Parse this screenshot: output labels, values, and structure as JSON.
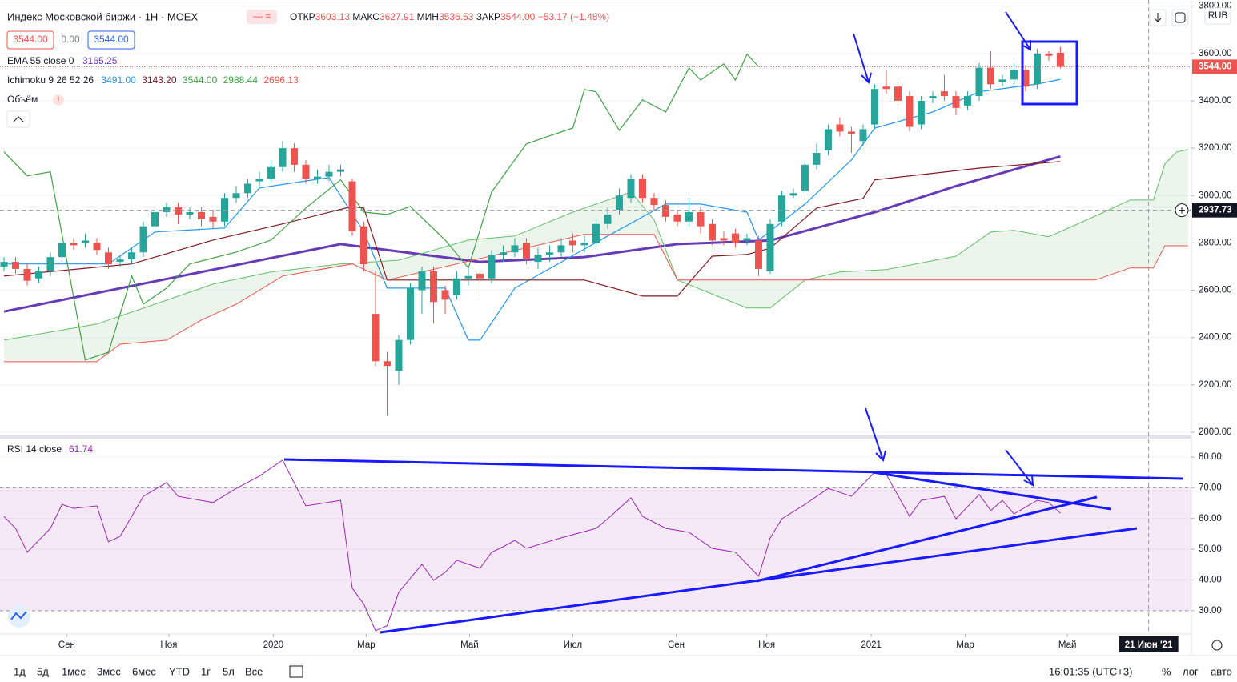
{
  "header": {
    "title": "Индекс Московской биржи · 1Н · MOEX",
    "ohlc": [
      [
        "ОТКР",
        "3603.13"
      ],
      [
        "МАКС",
        "3627.91"
      ],
      [
        "МИН",
        "3536.53"
      ],
      [
        "ЗАКР",
        "3544.00"
      ]
    ],
    "change": "−53.17 (−1.48%)",
    "sell": "3544.00",
    "spread": "0.00",
    "buy": "3544.00",
    "currency": "RUB"
  },
  "legend": {
    "ema": "EMA 55 close 0",
    "ema_value": "3165.25",
    "ichimoku": "Ichimoku 9 26 52 26",
    "ichimoku_values": [
      "3491.00",
      "3143.20",
      "3544.00",
      "2988.44",
      "2696.13"
    ],
    "volume": "Объём",
    "rsi": "RSI 14 close",
    "rsi_value": "61.74"
  },
  "toolbar": {
    "ranges": [
      "1д",
      "5д",
      "1мес",
      "3мес",
      "6мес",
      "YTD",
      "1г",
      "5л",
      "Все"
    ],
    "time": "16:01:35 (UTC+3)",
    "percent": "%",
    "log": "лог",
    "auto": "авто"
  },
  "chart_data": [
    {
      "type": "candlestick",
      "xlim": [
        -0.345,
        102.28
      ],
      "ylim": [
        1983,
        3826
      ],
      "yticks": [
        {
          "value": 2000,
          "label": "2000.00"
        },
        {
          "value": 2200,
          "label": "2200.00"
        },
        {
          "value": 2400,
          "label": "2400.00"
        },
        {
          "value": 2600,
          "label": "2600.00"
        },
        {
          "value": 2800,
          "label": "2800.00"
        },
        {
          "value": 3000,
          "label": "3000.00"
        },
        {
          "value": 3200,
          "label": "3200.00"
        },
        {
          "value": 3400,
          "label": "3400.00"
        },
        {
          "value": 3600,
          "label": "3600.00"
        },
        {
          "value": 3800,
          "label": "3800.00"
        }
      ],
      "up_color": "#26a69a",
      "down_color": "#ef5350",
      "open": [
        2700,
        2720,
        2690,
        2650,
        2680,
        2740,
        2800,
        2800,
        2800,
        2760,
        2720,
        2730,
        2760,
        2870,
        2930,
        2950,
        2920,
        2930,
        2910,
        2890,
        2990,
        3010,
        3060,
        3070,
        3120,
        3200,
        3130,
        3070,
        3080,
        3100,
        3060,
        2870,
        2500,
        2300,
        2260,
        2390,
        2600,
        2680,
        2600,
        2580,
        2650,
        2670,
        2650,
        2750,
        2760,
        2800,
        2720,
        2750,
        2760,
        2810,
        2790,
        2800,
        2880,
        2940,
        2990,
        3070,
        2990,
        2960,
        2920,
        2890,
        2930,
        2880,
        2820,
        2840,
        2810,
        2810,
        2680,
        2890,
        3000,
        3020,
        3130,
        3190,
        3300,
        3270,
        3230,
        3300,
        3460,
        3460,
        3420,
        3300,
        3410,
        3440,
        3420,
        3380,
        3420,
        3540,
        3480,
        3490,
        3530,
        3470,
        3600,
        3603.13
      ],
      "high": [
        2740,
        2740,
        2710,
        2700,
        2760,
        2820,
        2820,
        2840,
        2820,
        2780,
        2750,
        2780,
        2890,
        2960,
        2970,
        2970,
        2950,
        2950,
        2940,
        3010,
        3040,
        3070,
        3100,
        3150,
        3230,
        3220,
        3150,
        3110,
        3130,
        3130,
        3070,
        2890,
        2680,
        2340,
        2410,
        2630,
        2700,
        2700,
        2620,
        2680,
        2700,
        2690,
        2770,
        2790,
        2820,
        2820,
        2780,
        2790,
        2820,
        2840,
        2830,
        2900,
        2950,
        3030,
        3090,
        3090,
        3010,
        2980,
        2940,
        2990,
        2950,
        2900,
        2850,
        2860,
        2840,
        2830,
        2900,
        3020,
        3030,
        3150,
        3220,
        3300,
        3330,
        3290,
        3300,
        3470,
        3530,
        3480,
        3440,
        3420,
        3440,
        3510,
        3440,
        3440,
        3560,
        3610,
        3510,
        3560,
        3550,
        3620,
        3610,
        3627.91
      ],
      "low": [
        2680,
        2670,
        2620,
        2630,
        2660,
        2720,
        2770,
        2780,
        2750,
        2690,
        2700,
        2710,
        2740,
        2850,
        2910,
        2880,
        2900,
        2870,
        2860,
        2870,
        2970,
        2990,
        3040,
        3050,
        3100,
        3100,
        3050,
        3050,
        3060,
        3080,
        2830,
        2680,
        2280,
        2070,
        2200,
        2370,
        2500,
        2460,
        2500,
        2560,
        2620,
        2580,
        2630,
        2720,
        2740,
        2710,
        2690,
        2720,
        2740,
        2760,
        2760,
        2780,
        2860,
        2920,
        2970,
        2970,
        2940,
        2890,
        2870,
        2870,
        2840,
        2790,
        2790,
        2780,
        2790,
        2660,
        2670,
        2870,
        2990,
        3000,
        3110,
        3170,
        3250,
        3180,
        3210,
        3280,
        3430,
        3380,
        3270,
        3280,
        3390,
        3400,
        3340,
        3360,
        3400,
        3450,
        3460,
        3470,
        3440,
        3450,
        3570,
        3536.53
      ],
      "close": [
        2720,
        2690,
        2640,
        2680,
        2740,
        2800,
        2790,
        2810,
        2770,
        2710,
        2730,
        2760,
        2870,
        2930,
        2950,
        2920,
        2930,
        2900,
        2890,
        2990,
        3010,
        3050,
        3070,
        3120,
        3200,
        3130,
        3070,
        3080,
        3100,
        3110,
        2850,
        2710,
        2300,
        2280,
        2390,
        2610,
        2680,
        2550,
        2560,
        2650,
        2660,
        2650,
        2750,
        2760,
        2790,
        2730,
        2750,
        2760,
        2790,
        2790,
        2800,
        2880,
        2920,
        3000,
        3070,
        2990,
        2960,
        2910,
        2890,
        2930,
        2870,
        2810,
        2810,
        2800,
        2820,
        2690,
        2880,
        3000,
        3010,
        3130,
        3180,
        3280,
        3270,
        3260,
        3280,
        3450,
        3450,
        3400,
        3290,
        3400,
        3420,
        3420,
        3370,
        3420,
        3540,
        3470,
        3490,
        3530,
        3460,
        3600,
        3590,
        3544
      ],
      "cloud_color": "#43a047",
      "series": [
        {
          "color": "#673ab7",
          "width": 3,
          "x": [
            0,
            29,
            41,
            50,
            58,
            66,
            75,
            82,
            91
          ],
          "values": [
            2510,
            2795,
            2720,
            2740,
            2795,
            2810,
            2930,
            3040,
            3165.25
          ]
        },
        {
          "color": "#2196f3",
          "width": 1.2,
          "x": [
            0,
            9,
            13,
            19,
            22,
            28,
            31,
            33,
            38,
            40,
            41,
            44,
            52,
            57,
            60,
            64,
            65,
            69,
            73,
            75,
            80,
            84,
            89,
            91
          ],
          "values": [
            2711,
            2711,
            2846,
            2863,
            3032,
            3076,
            2846,
            2609,
            2609,
            2389,
            2389,
            2609,
            2829,
            2964,
            2964,
            2930,
            2812,
            2964,
            3150,
            3285,
            3353,
            3438,
            3471,
            3491
          ]
        },
        {
          "color": "#801922",
          "width": 1.2,
          "x": [
            0,
            11,
            18,
            24,
            30,
            31,
            33,
            50,
            55,
            58,
            61,
            64,
            66,
            70,
            74,
            75,
            84,
            91
          ],
          "values": [
            2660,
            2711,
            2812,
            2880,
            2954,
            2947,
            2643,
            2643,
            2575,
            2575,
            2744,
            2751,
            2778,
            2947,
            2988,
            3066,
            3116,
            3143.2
          ]
        },
        {
          "color": "#43a047",
          "width": 1.2,
          "x": [
            0,
            2,
            4,
            7,
            9,
            11,
            12,
            14,
            16,
            20,
            23,
            26,
            29,
            31,
            33,
            35,
            38,
            40,
            42,
            45,
            47,
            49,
            50,
            51,
            53,
            55,
            57,
            59,
            60,
            62,
            63,
            64,
            65
          ],
          "values": [
            3184,
            3083,
            3100,
            2305,
            2338,
            2660,
            2541,
            2609,
            2711,
            2761,
            2812,
            2947,
            3066,
            2930,
            2920,
            2954,
            2812,
            2694,
            3015,
            3218,
            3252,
            3285,
            3448,
            3438,
            3275,
            3404,
            3353,
            3539,
            3488,
            3556,
            3488,
            3597,
            3544
          ]
        },
        {
          "color": "#66bb6a",
          "width": 1,
          "x": [
            0,
            4,
            8,
            14,
            18,
            23,
            29,
            34,
            40,
            44,
            49,
            54,
            56,
            58,
            64,
            66,
            69,
            72,
            76,
            82,
            85,
            87,
            90,
            94,
            97,
            99,
            100,
            101,
            102
          ],
          "values": [
            2389,
            2423,
            2457,
            2558,
            2626,
            2677,
            2711,
            2727,
            2812,
            2829,
            2930,
            3015,
            2897,
            2643,
            2525,
            2525,
            2643,
            2677,
            2687,
            2744,
            2846,
            2853,
            2826,
            2913,
            2981,
            2981,
            3133,
            3184,
            3194
          ]
        },
        {
          "color": "#ef5350",
          "width": 1,
          "x": [
            0,
            8,
            10,
            14,
            17,
            20,
            24,
            30,
            33,
            50,
            56,
            58,
            94,
            97,
            99,
            100,
            102
          ],
          "values": [
            2298,
            2298,
            2372,
            2389,
            2474,
            2541,
            2660,
            2711,
            2643,
            2836,
            2836,
            2643,
            2643,
            2694,
            2694,
            2788,
            2788
          ]
        }
      ],
      "cloud": [
        4,
        5
      ],
      "last": {
        "value": 3544,
        "label": "3544.00"
      },
      "crosshair_y": 2937.73
    },
    {
      "type": "line",
      "xlim": [
        -0.345,
        102.28
      ],
      "ylim": [
        22.4,
        86
      ],
      "color": "#9c27b0",
      "yticks": [
        {
          "value": 30,
          "label": "30.00"
        },
        {
          "value": 40,
          "label": "40.00"
        },
        {
          "value": 50,
          "label": "50.00"
        },
        {
          "value": 60,
          "label": "60.00"
        },
        {
          "value": 70,
          "label": "70.00"
        },
        {
          "value": 80,
          "label": "80.00"
        }
      ],
      "bands": [
        30,
        70
      ],
      "xticks": [
        {
          "value": 5.4,
          "label": "Сен"
        },
        {
          "value": 14.2,
          "label": "Ноя"
        },
        {
          "value": 23.2,
          "label": "2020"
        },
        {
          "value": 31.2,
          "label": "Мар"
        },
        {
          "value": 40.1,
          "label": "Май"
        },
        {
          "value": 49,
          "label": "Июл"
        },
        {
          "value": 57.9,
          "label": "Сен"
        },
        {
          "value": 65.7,
          "label": "Ноя"
        },
        {
          "value": 74.7,
          "label": "2021"
        },
        {
          "value": 82.8,
          "label": "Мар"
        },
        {
          "value": 91.6,
          "label": "Май"
        }
      ],
      "x": [
        0,
        1,
        2,
        4,
        5,
        6,
        8,
        9,
        10,
        12,
        14,
        15,
        18,
        20,
        22,
        24,
        26,
        29,
        30,
        31,
        32,
        33,
        34,
        36,
        37,
        38,
        39,
        40,
        41,
        42,
        43,
        44,
        45,
        48,
        51,
        52,
        54,
        55,
        57,
        59,
        61,
        63,
        65,
        66,
        67,
        69,
        71,
        73,
        75,
        76,
        78,
        79,
        81,
        82,
        84,
        85,
        86,
        87,
        89,
        90,
        91
      ],
      "values": [
        60.7,
        56.8,
        49,
        56.8,
        64.6,
        63.3,
        64.1,
        52.4,
        54.2,
        67.2,
        71.7,
        67.2,
        65.2,
        69.8,
        73.8,
        79,
        64.1,
        65.9,
        37.3,
        32.1,
        23.5,
        25.1,
        36,
        45.1,
        39.9,
        42.5,
        46.4,
        45.1,
        43.8,
        49,
        50.8,
        52.9,
        50.3,
        53.7,
        56.8,
        59.9,
        66.7,
        60.7,
        56.8,
        55.5,
        50.3,
        49,
        41.2,
        53.7,
        59.9,
        64.6,
        69.8,
        67.2,
        75.1,
        74.3,
        60.7,
        65.9,
        67.2,
        59.9,
        67.8,
        62.6,
        65.9,
        61.5,
        65.9,
        65.2,
        61.74
      ],
      "crosshair_x": {
        "value": 98.6,
        "label": "21 Июн '21"
      }
    }
  ]
}
